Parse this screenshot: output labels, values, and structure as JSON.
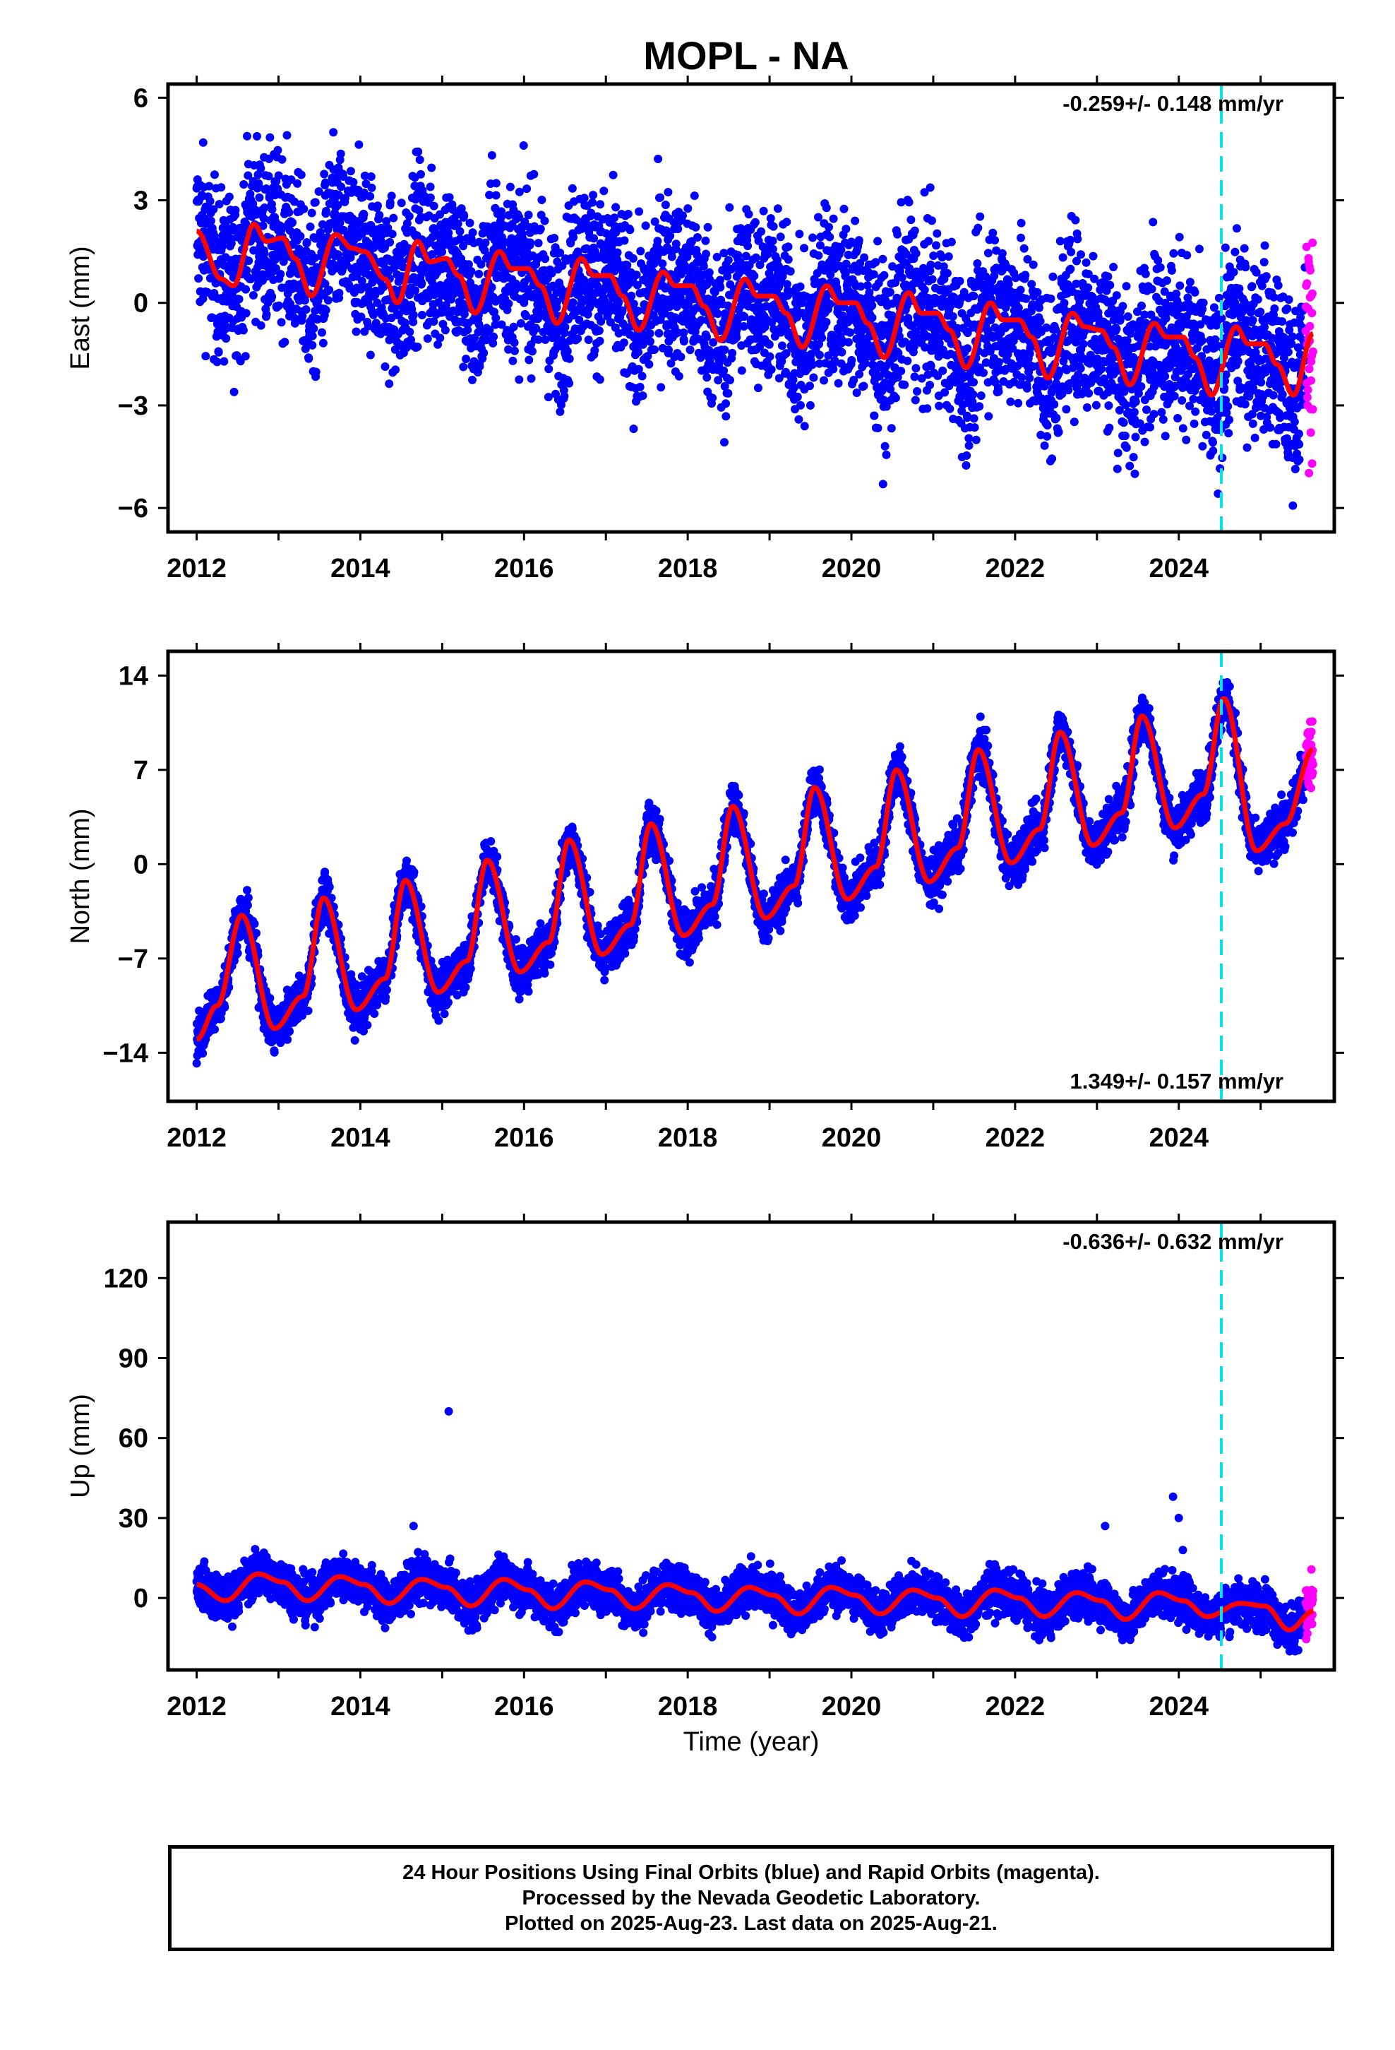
{
  "title": "MOPL - NA",
  "colors": {
    "final_orbits": "#0000ff",
    "rapid_orbits": "#ff00ff",
    "model_fit": "#ff0000",
    "event_line": "#00e5e5",
    "axes": "#000000"
  },
  "xlabel": "Time (year)",
  "footer": {
    "line1": "24 Hour Positions Using Final Orbits (blue) and Rapid Orbits (magenta).",
    "line2": "Processed by the Nevada Geodetic Laboratory.",
    "line3": "Plotted on 2025-Aug-23. Last data on 2025-Aug-21."
  },
  "chart_data": [
    {
      "type": "scatter",
      "name": "east",
      "ylabel": "East (mm)",
      "xlim": [
        2011.65,
        2025.9
      ],
      "ylim": [
        -6.7,
        6.4
      ],
      "xticks": [
        2012,
        2014,
        2016,
        2018,
        2020,
        2022,
        2024
      ],
      "yticks": [
        -6,
        -3,
        0,
        3,
        6
      ],
      "ytick_labels": [
        "−6",
        "−3",
        "0",
        "3",
        "6"
      ],
      "rate_label": "-0.259+/- 0.148 mm/yr",
      "rate_label_position": "top-right",
      "event_line_x": 2024.52,
      "rapid_start": 2025.55,
      "data_end": 2025.64,
      "model": {
        "x": [
          2012.0,
          2012.3,
          2012.45,
          2012.7,
          2012.85,
          2013.05,
          2013.2,
          2013.4,
          2013.7,
          2013.9,
          2014.05,
          2014.3,
          2014.45,
          2014.7,
          2014.85,
          2015.05,
          2015.2,
          2015.4,
          2015.7,
          2015.85,
          2016.05,
          2016.2,
          2016.4,
          2016.7,
          2016.85,
          2017.05,
          2017.2,
          2017.4,
          2017.7,
          2017.85,
          2018.05,
          2018.2,
          2018.4,
          2018.7,
          2018.85,
          2019.05,
          2019.2,
          2019.4,
          2019.7,
          2019.85,
          2020.05,
          2020.2,
          2020.4,
          2020.7,
          2020.85,
          2021.05,
          2021.2,
          2021.4,
          2021.7,
          2021.85,
          2022.05,
          2022.2,
          2022.4,
          2022.7,
          2022.85,
          2023.05,
          2023.2,
          2023.4,
          2023.7,
          2023.85,
          2024.05,
          2024.2,
          2024.4,
          2024.7,
          2024.85,
          2025.05,
          2025.2,
          2025.4,
          2025.64
        ],
        "y": [
          2.1,
          0.7,
          0.5,
          2.3,
          1.8,
          1.9,
          1.3,
          0.2,
          2.0,
          1.6,
          1.5,
          0.7,
          0.0,
          1.8,
          1.2,
          1.3,
          0.8,
          -0.3,
          1.5,
          1.0,
          1.0,
          0.5,
          -0.6,
          1.3,
          0.8,
          0.8,
          0.2,
          -0.8,
          0.9,
          0.5,
          0.5,
          -0.1,
          -1.1,
          0.7,
          0.2,
          0.2,
          -0.3,
          -1.3,
          0.5,
          0.0,
          0.0,
          -0.6,
          -1.6,
          0.3,
          -0.3,
          -0.3,
          -0.8,
          -1.9,
          0.0,
          -0.5,
          -0.5,
          -1.0,
          -2.2,
          -0.3,
          -0.7,
          -0.8,
          -1.3,
          -2.4,
          -0.6,
          -1.0,
          -1.0,
          -1.6,
          -2.7,
          -0.7,
          -1.2,
          -1.2,
          -1.8,
          -2.7,
          -0.9
        ]
      }
    },
    {
      "type": "scatter",
      "name": "north",
      "ylabel": "North (mm)",
      "xlim": [
        2011.65,
        2025.9
      ],
      "ylim": [
        -17.6,
        15.8
      ],
      "xticks": [
        2012,
        2014,
        2016,
        2018,
        2020,
        2022,
        2024
      ],
      "yticks": [
        -14,
        -7,
        0,
        7,
        14
      ],
      "ytick_labels": [
        "−14",
        "−7",
        "0",
        "7",
        "14"
      ],
      "rate_label": "1.349+/- 0.157 mm/yr",
      "rate_label_position": "bottom-right",
      "event_line_x": 2024.52,
      "rapid_start": 2025.55,
      "data_end": 2025.64,
      "model": {
        "x": [
          2012.0,
          2012.25,
          2012.55,
          2012.95,
          2013.3,
          2013.55,
          2013.95,
          2014.3,
          2014.55,
          2014.95,
          2015.3,
          2015.55,
          2015.95,
          2016.3,
          2016.55,
          2016.95,
          2017.3,
          2017.55,
          2017.95,
          2018.3,
          2018.55,
          2018.95,
          2019.3,
          2019.55,
          2019.95,
          2020.3,
          2020.55,
          2020.95,
          2021.3,
          2021.55,
          2021.95,
          2022.3,
          2022.55,
          2022.95,
          2023.3,
          2023.55,
          2023.95,
          2024.3,
          2024.55,
          2024.95,
          2025.3,
          2025.64
        ],
        "y": [
          -13.0,
          -10.5,
          -3.8,
          -12.2,
          -9.8,
          -2.5,
          -10.8,
          -8.5,
          -1.2,
          -9.5,
          -7.2,
          0.3,
          -8.0,
          -5.8,
          1.8,
          -6.7,
          -4.5,
          3.0,
          -5.3,
          -3.0,
          4.3,
          -4.0,
          -1.6,
          5.7,
          -2.6,
          -0.2,
          7.0,
          -1.3,
          1.2,
          8.5,
          0.1,
          2.6,
          9.8,
          1.4,
          3.8,
          11.0,
          2.7,
          5.2,
          12.3,
          1.0,
          3.0,
          8.5
        ]
      }
    },
    {
      "type": "scatter",
      "name": "up",
      "ylabel": "Up (mm)",
      "xlim": [
        2011.65,
        2025.9
      ],
      "ylim": [
        -27,
        141
      ],
      "xticks": [
        2012,
        2014,
        2016,
        2018,
        2020,
        2022,
        2024
      ],
      "yticks": [
        0,
        30,
        60,
        90,
        120
      ],
      "ytick_labels": [
        "0",
        "30",
        "60",
        "90",
        "120"
      ],
      "rate_label": "-0.636+/- 0.632 mm/yr",
      "rate_label_position": "top-right",
      "event_line_x": 2024.52,
      "rapid_start": 2025.55,
      "data_end": 2025.64,
      "model": {
        "x": [
          2012.0,
          2012.35,
          2012.75,
          2013.05,
          2013.35,
          2013.75,
          2014.05,
          2014.35,
          2014.75,
          2015.05,
          2015.35,
          2015.75,
          2016.05,
          2016.35,
          2016.75,
          2017.05,
          2017.35,
          2017.75,
          2018.05,
          2018.35,
          2018.75,
          2019.05,
          2019.35,
          2019.75,
          2020.05,
          2020.35,
          2020.75,
          2021.05,
          2021.35,
          2021.75,
          2022.05,
          2022.35,
          2022.75,
          2023.05,
          2023.35,
          2023.75,
          2024.05,
          2024.35,
          2024.75,
          2025.05,
          2025.35,
          2025.64
        ],
        "y": [
          5,
          -1,
          9,
          6,
          -1,
          8,
          5,
          -2,
          7,
          4,
          -3,
          7,
          3,
          -4,
          6,
          3,
          -4,
          5,
          2,
          -5,
          4,
          1,
          -6,
          4,
          1,
          -6,
          3,
          0,
          -7,
          3,
          0,
          -7,
          2,
          -1,
          -8,
          2,
          -1,
          -7,
          -2,
          -3,
          -12,
          -5
        ]
      },
      "outliers": [
        [
          2015.08,
          70
        ],
        [
          2023.93,
          38
        ],
        [
          2024.0,
          30
        ],
        [
          2023.1,
          27
        ],
        [
          2014.65,
          27
        ],
        [
          2024.05,
          18
        ]
      ]
    }
  ]
}
